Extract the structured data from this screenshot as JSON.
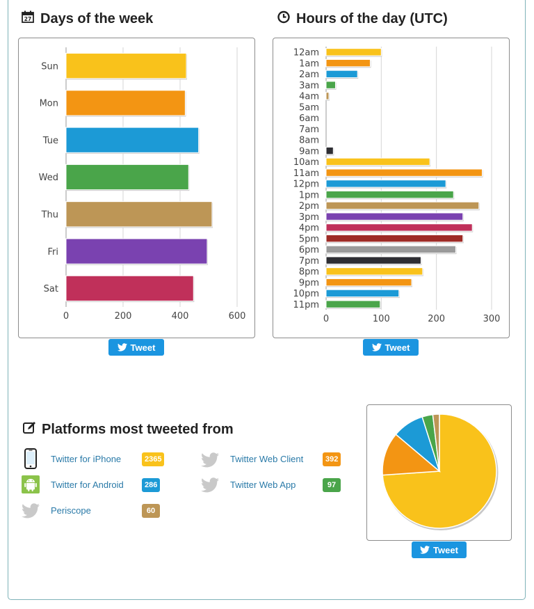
{
  "sections": {
    "days_title": "Days of the week",
    "hours_title": "Hours of the day (UTC)",
    "platforms_title": "Platforms most tweeted from"
  },
  "tweet_label": "Tweet",
  "colors": {
    "yellow": "#f9c21b",
    "orange": "#f39513",
    "blue": "#1c9ad6",
    "green": "#4aa54a",
    "tan": "#bd9656",
    "purple": "#7a42b0",
    "crimson": "#c0305a",
    "darkred": "#9e2b26",
    "gray": "#9a9a9a",
    "dark": "#2e2e33"
  },
  "chart_data": [
    {
      "type": "bar",
      "orientation": "horizontal",
      "title": "Days of the week",
      "categories": [
        "Sun",
        "Mon",
        "Tue",
        "Wed",
        "Thu",
        "Fri",
        "Sat"
      ],
      "values": [
        422,
        418,
        465,
        430,
        512,
        495,
        447
      ],
      "colors": [
        "#f9c21b",
        "#f39513",
        "#1c9ad6",
        "#4aa54a",
        "#bd9656",
        "#7a42b0",
        "#c0305a"
      ],
      "xlim": [
        0,
        600
      ],
      "xticks": [
        0,
        200,
        400,
        600
      ],
      "grid": true
    },
    {
      "type": "bar",
      "orientation": "horizontal",
      "title": "Hours of the day (UTC)",
      "categories": [
        "12am",
        "1am",
        "2am",
        "3am",
        "4am",
        "5am",
        "6am",
        "7am",
        "8am",
        "9am",
        "10am",
        "11am",
        "12pm",
        "1pm",
        "2pm",
        "3pm",
        "4pm",
        "5pm",
        "6pm",
        "7pm",
        "8pm",
        "9pm",
        "10pm",
        "11pm"
      ],
      "values": [
        100,
        80,
        57,
        17,
        5,
        0,
        0,
        0,
        0,
        13,
        188,
        283,
        217,
        231,
        277,
        248,
        265,
        248,
        235,
        172,
        175,
        155,
        132,
        98
      ],
      "colors": [
        "#f9c21b",
        "#f39513",
        "#1c9ad6",
        "#4aa54a",
        "#bd9656",
        "#7a42b0",
        "#c0305a",
        "#9e2b26",
        "#9a9a9a",
        "#2e2e33",
        "#f9c21b",
        "#f39513",
        "#1c9ad6",
        "#4aa54a",
        "#bd9656",
        "#7a42b0",
        "#c0305a",
        "#9e2b26",
        "#9a9a9a",
        "#2e2e33",
        "#f9c21b",
        "#f39513",
        "#1c9ad6",
        "#4aa54a"
      ],
      "xlim": [
        0,
        300
      ],
      "xticks": [
        0,
        100,
        200,
        300
      ],
      "grid": true
    },
    {
      "type": "pie",
      "title": "Platforms most tweeted from",
      "labels": [
        "Twitter for iPhone",
        "Twitter Web Client",
        "Twitter for Android",
        "Twitter Web App",
        "Periscope"
      ],
      "values": [
        2365,
        392,
        286,
        97,
        60
      ],
      "colors": [
        "#f9c21b",
        "#f39513",
        "#1c9ad6",
        "#4aa54a",
        "#bd9656"
      ]
    }
  ],
  "platforms": [
    {
      "name": "Twitter for iPhone",
      "count": "2365",
      "color": "#f9c21b",
      "icon": "iphone-icon"
    },
    {
      "name": "Twitter Web Client",
      "count": "392",
      "color": "#f39513",
      "icon": "twitter-bird-icon"
    },
    {
      "name": "Twitter for Android",
      "count": "286",
      "color": "#1c9ad6",
      "icon": "android-icon"
    },
    {
      "name": "Twitter Web App",
      "count": "97",
      "color": "#4aa54a",
      "icon": "twitter-bird-icon"
    },
    {
      "name": "Periscope",
      "count": "60",
      "color": "#bd9656",
      "icon": "twitter-bird-icon"
    }
  ]
}
